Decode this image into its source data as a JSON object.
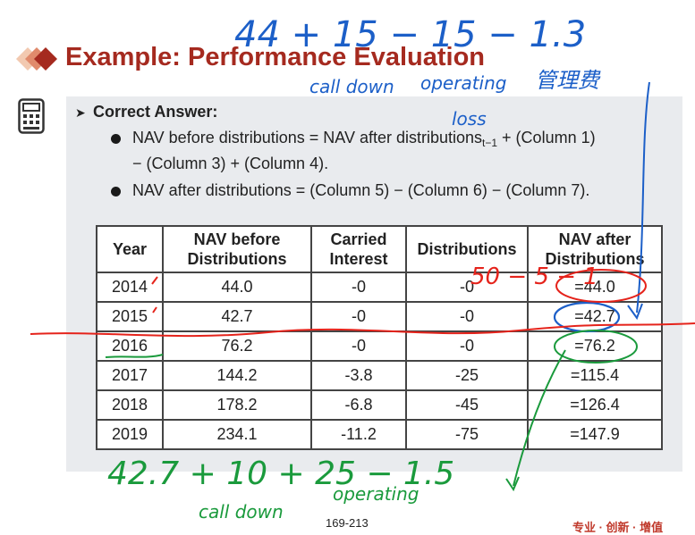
{
  "title": "Example: Performance Evaluation",
  "answer_heading": "Correct Answer:",
  "bullets": [
    {
      "pre": "NAV before distributions = NAV after distributions",
      "sub": "t−1",
      "post": " + (Column 1)",
      "line2": "− (Column 3) + (Column 4)."
    },
    {
      "pre": "NAV after distributions = (Column 5) − (Column 6) − (Column 7)."
    }
  ],
  "table": {
    "headers": [
      "Year",
      "NAV before Distributions",
      "Carried Interest",
      "Distributions",
      "NAV after Distributions"
    ],
    "rows": [
      [
        "2014",
        "44.0",
        "-0",
        "-0",
        "=44.0"
      ],
      [
        "2015",
        "42.7",
        "-0",
        "-0",
        "=42.7"
      ],
      [
        "2016",
        "76.2",
        "-0",
        "-0",
        "=76.2"
      ],
      [
        "2017",
        "144.2",
        "-3.8",
        "-25",
        "=115.4"
      ],
      [
        "2018",
        "178.2",
        "-6.8",
        "-45",
        "=126.4"
      ],
      [
        "2019",
        "234.1",
        "-11.2",
        "-75",
        "=147.9"
      ]
    ]
  },
  "page_number": "169-213",
  "brand_text": "专业 · 创新 · 增值",
  "annotations": {
    "top_formula": "44 + 15 − 15 − 1.3",
    "call_down_top": "call down",
    "operating_top": "operating",
    "loss_top": "loss",
    "chinese_note": "管理费",
    "cross_note": "50 − 5 − 1",
    "bottom_formula": "42.7 + 10 + 25 − 1.5",
    "call_down_bottom": "call down",
    "operating_bottom": "operating"
  },
  "colors": {
    "title": "#a52a1f",
    "ink_blue": "#1c5fc8",
    "ink_red": "#e5231b",
    "ink_green": "#1a9a3c"
  }
}
